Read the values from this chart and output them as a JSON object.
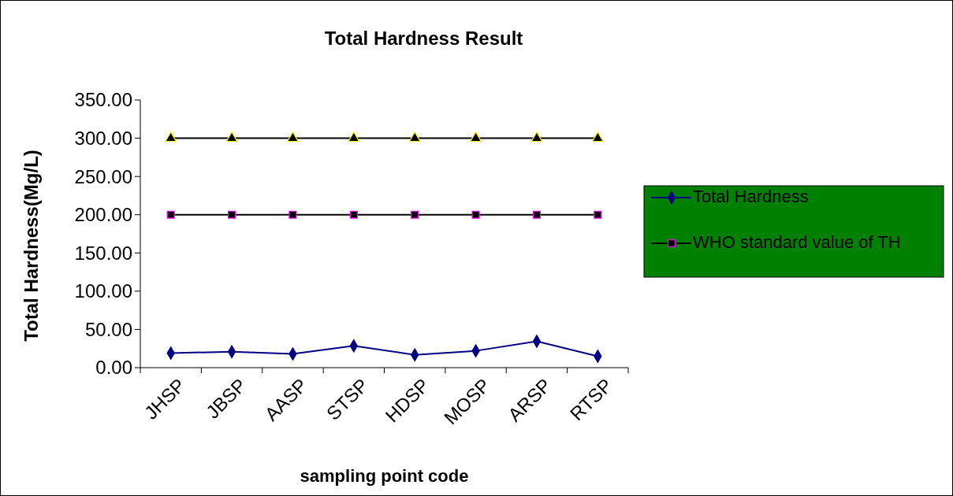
{
  "chart_data": {
    "type": "line",
    "title": "Total Hardness Result",
    "xlabel": "sampling point code",
    "ylabel": "Total Hardness(Mg/L)",
    "categories": [
      "JHSP",
      "JBSP",
      "AASP",
      "STSP",
      "HDSP",
      "MOSP",
      "ARSP",
      "RTSP"
    ],
    "series": [
      {
        "name": "Total Hardness",
        "color": "#000080",
        "marker": "diamond",
        "values": [
          19.1,
          20.8,
          17.9,
          28.6,
          16.7,
          22,
          34.4,
          15
        ]
      },
      {
        "name": "WHO standard value of TH",
        "color": "#000000",
        "marker": "square",
        "values": [
          200,
          200,
          200,
          200,
          200,
          200,
          200,
          200
        ]
      },
      {
        "color": "#000000",
        "marker": "triangle",
        "values": [
          300,
          300,
          300,
          300,
          300,
          300,
          300,
          300
        ]
      }
    ],
    "ylim": [
      0,
      350
    ],
    "yticks": [
      {
        "value": 0,
        "label": "0.00"
      },
      {
        "value": 50,
        "label": "50.00"
      },
      {
        "value": 100,
        "label": "100.00"
      },
      {
        "value": 150,
        "label": "150.00"
      },
      {
        "value": 200,
        "label": "200.00"
      },
      {
        "value": 250,
        "label": "250.00"
      },
      {
        "value": 300,
        "label": "300.00"
      },
      {
        "value": 350,
        "label": "350.00"
      }
    ],
    "legend": "right"
  }
}
